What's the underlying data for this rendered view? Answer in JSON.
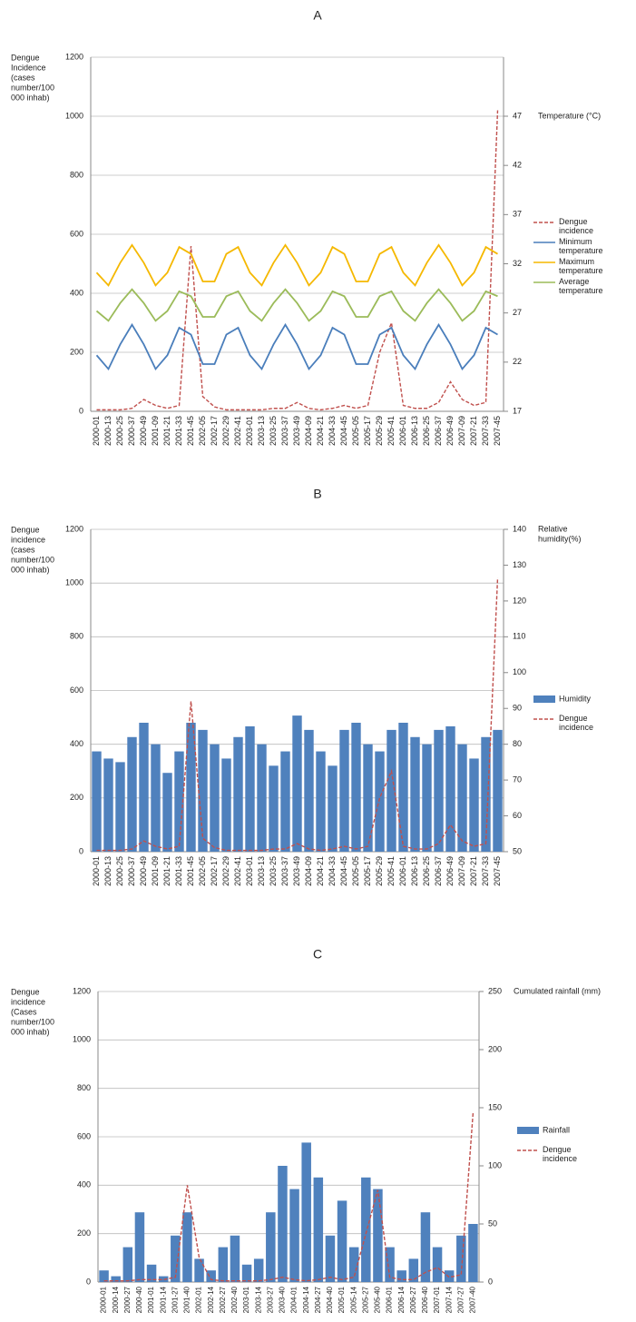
{
  "chart_data": [
    {
      "type": "combo",
      "title": "A",
      "ylabel": [
        "Dengue",
        "Incidence",
        "(cases",
        "number/100",
        "000 inhab)"
      ],
      "y2label": [
        "Temperature (°C)"
      ],
      "categories": [
        "2000-01",
        "2000-13",
        "2000-25",
        "2000-37",
        "2000-49",
        "2001-09",
        "2001-21",
        "2001-33",
        "2001-45",
        "2002-05",
        "2002-17",
        "2002-29",
        "2002-41",
        "2003-01",
        "2003-13",
        "2003-25",
        "2003-37",
        "2003-49",
        "2004-09",
        "2004-21",
        "2004-33",
        "2004-45",
        "2005-05",
        "2005-17",
        "2005-29",
        "2005-41",
        "2006-01",
        "2006-13",
        "2006-25",
        "2006-37",
        "2006-49",
        "2007-09",
        "2007-21",
        "2007-33",
        "2007-45"
      ],
      "series": [
        {
          "name": "Dengue incidence",
          "type": "line",
          "dash": true,
          "axis": "y",
          "color": "#c0504d",
          "values": [
            5,
            5,
            5,
            10,
            40,
            20,
            10,
            20,
            560,
            50,
            15,
            5,
            5,
            5,
            5,
            10,
            10,
            30,
            10,
            5,
            10,
            20,
            10,
            20,
            200,
            300,
            20,
            10,
            10,
            30,
            100,
            40,
            20,
            30,
            1020
          ]
        },
        {
          "name": "Minimum temperature",
          "type": "line",
          "dash": false,
          "axis": "y2",
          "color": "#4a7ebb",
          "values": [
            22.7,
            21.3,
            23.8,
            25.8,
            23.8,
            21.3,
            22.7,
            25.5,
            24.8,
            21.8,
            21.8,
            24.8,
            25.5,
            22.7,
            21.3,
            23.8,
            25.8,
            23.8,
            21.3,
            22.7,
            25.5,
            24.8,
            21.8,
            21.8,
            24.8,
            25.5,
            22.7,
            21.3,
            23.8,
            25.8,
            23.8,
            21.3,
            22.7,
            25.5,
            24.8
          ]
        },
        {
          "name": "Maximum temperature",
          "type": "line",
          "dash": false,
          "axis": "y2",
          "color": "#f5b800",
          "values": [
            31.1,
            29.8,
            32.1,
            33.9,
            32.1,
            29.8,
            31.1,
            33.7,
            33.0,
            30.2,
            30.2,
            33.0,
            33.7,
            31.1,
            29.8,
            32.1,
            33.9,
            32.1,
            29.8,
            31.1,
            33.7,
            33.0,
            30.2,
            30.2,
            33.0,
            33.7,
            31.1,
            29.8,
            32.1,
            33.9,
            32.1,
            29.8,
            31.1,
            33.7,
            33.0
          ]
        },
        {
          "name": "Average temperature",
          "type": "line",
          "dash": false,
          "axis": "y2",
          "color": "#9bbb59",
          "values": [
            27.2,
            26.2,
            28.0,
            29.4,
            28.0,
            26.2,
            27.2,
            29.2,
            28.7,
            26.6,
            26.6,
            28.7,
            29.2,
            27.2,
            26.2,
            28.0,
            29.4,
            28.0,
            26.2,
            27.2,
            29.2,
            28.7,
            26.6,
            26.6,
            28.7,
            29.2,
            27.2,
            26.2,
            28.0,
            29.4,
            28.0,
            26.2,
            27.2,
            29.2,
            28.7
          ]
        }
      ],
      "ylim": [
        0,
        1200
      ],
      "yticks": [
        0,
        200,
        400,
        600,
        800,
        1000,
        1200
      ],
      "y2lim": [
        17,
        53
      ],
      "y2ticks": [
        17,
        22,
        27,
        32,
        37,
        42,
        47
      ],
      "grid": true,
      "legend": "right"
    },
    {
      "type": "combo",
      "title": "B",
      "ylabel": [
        "Dengue",
        "incidence",
        "(cases",
        "number/100",
        "000 inhab)"
      ],
      "y2label": [
        "Relative",
        "humidity(%)"
      ],
      "categories": [
        "2000-01",
        "2000-13",
        "2000-25",
        "2000-37",
        "2000-49",
        "2001-09",
        "2001-21",
        "2001-33",
        "2001-45",
        "2002-05",
        "2002-17",
        "2002-29",
        "2002-41",
        "2003-01",
        "2003-13",
        "2003-25",
        "2003-37",
        "2003-49",
        "2004-09",
        "2004-21",
        "2004-33",
        "2004-45",
        "2005-05",
        "2005-17",
        "2005-29",
        "2005-41",
        "2006-01",
        "2006-13",
        "2006-25",
        "2006-37",
        "2006-49",
        "2007-09",
        "2007-21",
        "2007-33",
        "2007-45"
      ],
      "series": [
        {
          "name": "Humidity",
          "type": "bar",
          "dash": false,
          "axis": "y2",
          "color": "#4f81bd",
          "values": [
            78,
            76,
            75,
            82,
            86,
            80,
            72,
            78,
            86,
            84,
            80,
            76,
            82,
            85,
            80,
            74,
            78,
            88,
            84,
            78,
            74,
            84,
            86,
            80,
            78,
            84,
            86,
            82,
            80,
            84,
            85,
            80,
            76,
            82,
            84
          ]
        },
        {
          "name": "Dengue incidence",
          "type": "line",
          "dash": true,
          "axis": "y",
          "color": "#c0504d",
          "values": [
            5,
            5,
            5,
            10,
            40,
            20,
            10,
            20,
            560,
            50,
            15,
            5,
            5,
            5,
            5,
            10,
            10,
            30,
            10,
            5,
            10,
            20,
            10,
            20,
            200,
            300,
            20,
            10,
            10,
            30,
            100,
            40,
            20,
            30,
            1020
          ]
        }
      ],
      "ylim": [
        0,
        1200
      ],
      "yticks": [
        0,
        200,
        400,
        600,
        800,
        1000,
        1200
      ],
      "y2lim": [
        50,
        140
      ],
      "y2ticks": [
        50,
        60,
        70,
        80,
        90,
        100,
        110,
        120,
        130,
        140
      ],
      "grid": true,
      "legend": "right"
    },
    {
      "type": "combo",
      "title": "C",
      "ylabel": [
        "Dengue",
        "incidence",
        "(Cases",
        "number/100",
        "000 inhab)"
      ],
      "y2label": [
        "Cumulated rainfall (mm)"
      ],
      "categories": [
        "2000-01",
        "2000-14",
        "2000-27",
        "2000-40",
        "2001-01",
        "2001-14",
        "2001-27",
        "2001-40",
        "2002-01",
        "2002-14",
        "2002-27",
        "2002-40",
        "2003-01",
        "2003-14",
        "2003-27",
        "2003-40",
        "2004-01",
        "2004-14",
        "2004-27",
        "2004-40",
        "2005-01",
        "2005-14",
        "2005-27",
        "2005-40",
        "2006-01",
        "2006-14",
        "2006-27",
        "2006-40",
        "2007-01",
        "2007-14",
        "2007-27",
        "2007-40"
      ],
      "series": [
        {
          "name": "Rainfall",
          "type": "bar",
          "dash": false,
          "axis": "y2",
          "color": "#4f81bd",
          "values": [
            10,
            5,
            30,
            60,
            15,
            5,
            40,
            60,
            20,
            10,
            30,
            40,
            15,
            20,
            60,
            100,
            80,
            120,
            90,
            40,
            70,
            30,
            90,
            80,
            30,
            10,
            20,
            60,
            30,
            10,
            40,
            50
          ]
        },
        {
          "name": "Dengue incidence",
          "type": "line",
          "dash": true,
          "axis": "y",
          "color": "#c0504d",
          "values": [
            5,
            5,
            5,
            10,
            10,
            10,
            20,
            400,
            100,
            10,
            5,
            5,
            5,
            5,
            10,
            20,
            10,
            5,
            10,
            20,
            10,
            20,
            200,
            380,
            20,
            10,
            10,
            40,
            60,
            20,
            30,
            700
          ]
        }
      ],
      "ylim": [
        0,
        1200
      ],
      "yticks": [
        0,
        200,
        400,
        600,
        800,
        1000,
        1200
      ],
      "y2lim": [
        0,
        250
      ],
      "y2ticks": [
        0,
        50,
        100,
        150,
        200,
        250
      ],
      "grid": true,
      "legend": "right"
    }
  ]
}
